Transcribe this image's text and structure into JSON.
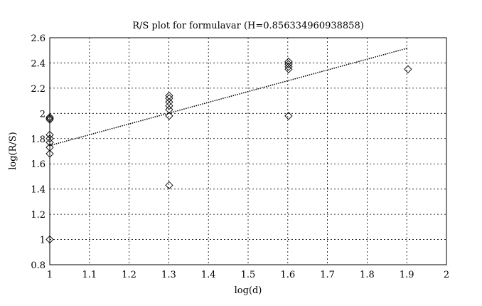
{
  "chart_data": {
    "type": "scatter",
    "title": "R/S plot for formulavar (H=0.856334960938858)",
    "xlabel": "log(d)",
    "ylabel": "log(R/S)",
    "xlim": [
      1,
      2
    ],
    "ylim": [
      0.8,
      2.6
    ],
    "xticks": [
      "1",
      "1.1",
      "1.2",
      "1.3",
      "1.4",
      "1.5",
      "1.6",
      "1.7",
      "1.8",
      "1.9",
      "2"
    ],
    "yticks": [
      "0.8",
      "1",
      "1.2",
      "1.4",
      "1.6",
      "1.8",
      "2",
      "2.2",
      "2.4",
      "2.6"
    ],
    "grid": true,
    "marker": "diamond",
    "points": [
      [
        1,
        1.97
      ],
      [
        1,
        1.96
      ],
      [
        1,
        1.95
      ],
      [
        1,
        1.83
      ],
      [
        1,
        1.8
      ],
      [
        1,
        1.77
      ],
      [
        1,
        1.73
      ],
      [
        1,
        1.68
      ],
      [
        1,
        1.0
      ],
      [
        1.301,
        2.14
      ],
      [
        1.301,
        2.12
      ],
      [
        1.301,
        2.09
      ],
      [
        1.301,
        2.06
      ],
      [
        1.301,
        2.03
      ],
      [
        1.301,
        1.98
      ],
      [
        1.301,
        1.43
      ],
      [
        1.602,
        2.41
      ],
      [
        1.602,
        2.39
      ],
      [
        1.602,
        2.37
      ],
      [
        1.602,
        2.35
      ],
      [
        1.602,
        1.98
      ],
      [
        1.903,
        2.35
      ]
    ],
    "fit_line": {
      "x": [
        1,
        1.903
      ],
      "y": [
        1.745,
        2.518
      ],
      "style": "dotted"
    }
  }
}
